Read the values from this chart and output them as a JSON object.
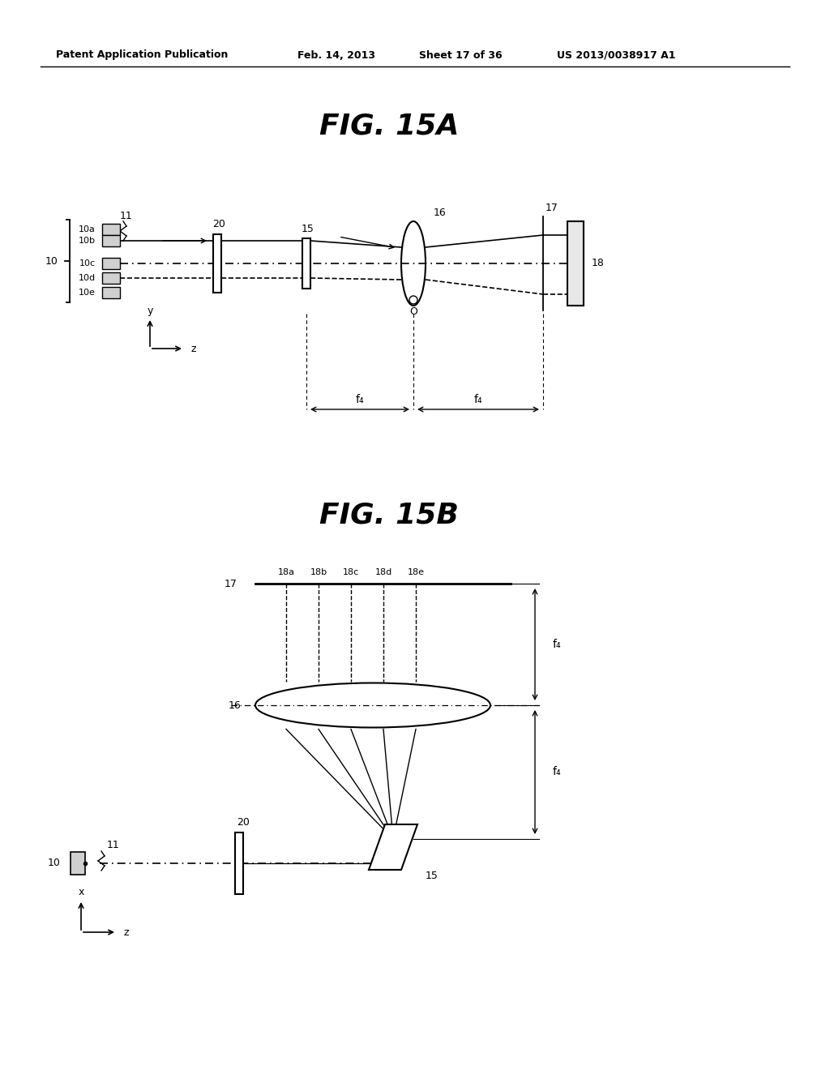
{
  "bg_color": "#ffffff",
  "header_text": "Patent Application Publication",
  "header_date": "Feb. 14, 2013",
  "header_sheet": "Sheet 17 of 36",
  "header_patent": "US 2013/0038917 A1",
  "fig15a_title": "FIG. 15A",
  "fig15b_title": "FIG. 15B",
  "line_color": "#000000",
  "dashed_color": "#555555"
}
